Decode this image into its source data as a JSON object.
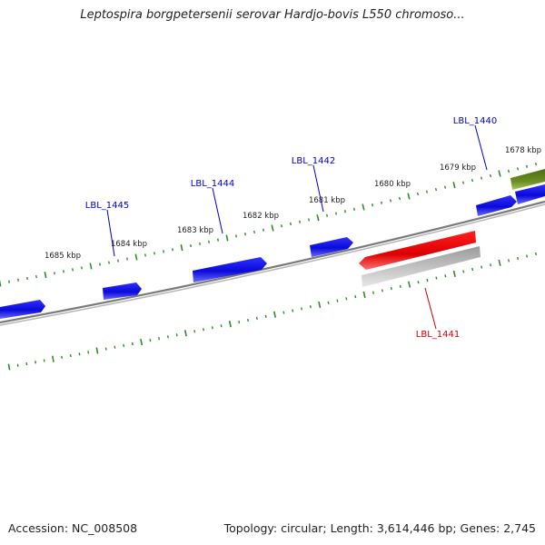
{
  "title": "Leptospira borgpetersenii serovar Hardjo-bovis L550 chromoso...",
  "footer": {
    "accession": "Accession: NC_008508",
    "summary": "Topology: circular; Length: 3,614,446 bp; Genes: 2,745"
  },
  "colors": {
    "forward_gene": "#1414e6",
    "reverse_gene": "#e61414",
    "reverse_gene_shadow": "#b8b8b8",
    "other_feature": "#6b8e23",
    "backbone": "#808080",
    "ticks": "#2e8b2e",
    "label_forward": "#0000cc",
    "label_reverse": "#cc0000"
  },
  "ruler": {
    "tick_labels": [
      "1685 kbp",
      "1684 kbp",
      "1683 kbp",
      "1682 kbp",
      "1681 kbp",
      "1680 kbp",
      "1679 kbp",
      "1678 kbp"
    ]
  },
  "gene_labels": [
    {
      "text": "LBL_1445",
      "strand": "forward"
    },
    {
      "text": "LBL_1444",
      "strand": "forward"
    },
    {
      "text": "LBL_1442",
      "strand": "forward"
    },
    {
      "text": "LBL_1440",
      "strand": "forward"
    },
    {
      "text": "LBL_1441",
      "strand": "reverse"
    }
  ]
}
